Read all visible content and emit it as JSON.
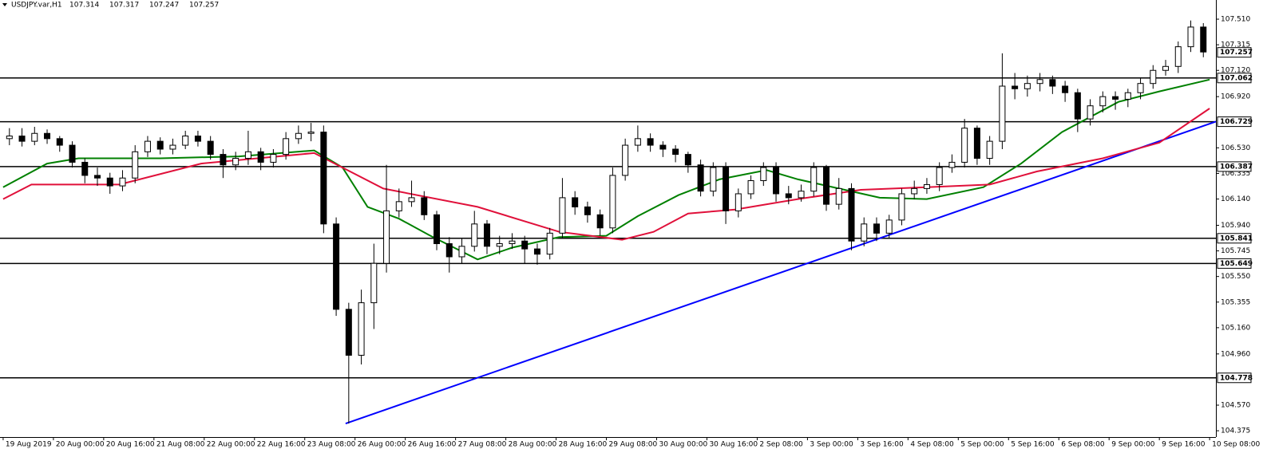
{
  "chart_data": {
    "type": "candlestick",
    "header": {
      "symbol": "USDJPY.var,H1",
      "open": 107.314,
      "high": 107.317,
      "low": 107.247,
      "close": 107.257
    },
    "candles": {
      "up_color": "#ffffff",
      "down_color": "#000000",
      "edge_color": "#000000",
      "x": [
        2,
        6,
        10,
        14,
        18,
        22,
        26,
        30,
        34,
        38,
        42,
        46,
        50,
        54,
        58,
        62,
        66,
        70,
        74,
        78,
        82,
        86,
        90,
        94,
        98,
        102,
        106,
        110,
        114,
        118,
        122,
        126,
        130,
        134,
        138,
        142,
        146,
        150,
        154,
        158,
        162,
        166,
        170,
        174,
        178,
        182,
        186,
        190,
        194,
        198,
        202,
        206,
        210,
        214,
        218,
        222,
        226,
        230,
        234,
        238,
        242,
        246,
        250,
        254,
        258,
        262,
        266,
        270,
        274,
        278,
        282,
        286,
        290,
        294,
        298,
        302,
        306,
        310,
        314,
        318,
        322,
        326,
        330,
        334,
        338,
        342,
        346,
        350,
        354,
        358,
        362,
        366,
        370,
        374,
        378,
        382
      ],
      "open": [
        106.6,
        106.62,
        106.58,
        106.64,
        106.6,
        106.55,
        106.42,
        106.32,
        106.3,
        106.24,
        106.3,
        106.5,
        106.58,
        106.52,
        106.55,
        106.62,
        106.58,
        106.48,
        106.4,
        106.45,
        106.5,
        106.42,
        106.48,
        106.6,
        106.64,
        106.65,
        105.95,
        105.3,
        104.95,
        105.35,
        105.65,
        106.05,
        106.12,
        106.15,
        106.02,
        105.8,
        105.7,
        105.78,
        105.95,
        105.78,
        105.8,
        105.82,
        105.76,
        105.72,
        105.88,
        106.15,
        106.08,
        106.02,
        105.92,
        106.32,
        106.55,
        106.6,
        106.55,
        106.52,
        106.48,
        106.4,
        106.2,
        106.38,
        106.05,
        106.18,
        106.28,
        106.38,
        106.18,
        106.15,
        106.2,
        106.38,
        106.1,
        106.22,
        105.82,
        105.95,
        105.88,
        105.98,
        106.18,
        106.22,
        106.25,
        106.38,
        106.42,
        106.68,
        106.45,
        106.58,
        107.0,
        106.98,
        107.02,
        107.05,
        107.0,
        106.95,
        106.75,
        106.85,
        106.92,
        106.9,
        106.95,
        107.02,
        107.12,
        107.15,
        107.3,
        107.45
      ],
      "high": [
        106.68,
        106.68,
        106.69,
        106.67,
        106.62,
        106.58,
        106.45,
        106.38,
        106.34,
        106.36,
        106.55,
        106.62,
        106.61,
        106.6,
        106.66,
        106.66,
        106.62,
        106.52,
        106.5,
        106.66,
        106.53,
        106.52,
        106.65,
        106.7,
        106.72,
        106.7,
        106.0,
        105.35,
        105.45,
        105.8,
        106.4,
        106.22,
        106.28,
        106.2,
        106.05,
        105.85,
        105.84,
        106.05,
        105.98,
        105.86,
        105.88,
        105.86,
        105.8,
        105.92,
        106.3,
        106.2,
        106.12,
        106.06,
        106.38,
        106.6,
        106.7,
        106.64,
        106.58,
        106.55,
        106.5,
        106.44,
        106.42,
        106.42,
        106.22,
        106.32,
        106.42,
        106.42,
        106.24,
        106.25,
        106.42,
        106.4,
        106.3,
        106.26,
        106.0,
        106.0,
        106.02,
        106.22,
        106.28,
        106.3,
        106.42,
        106.48,
        106.75,
        106.7,
        106.62,
        107.25,
        107.1,
        107.08,
        107.1,
        107.08,
        107.04,
        106.98,
        106.9,
        106.96,
        106.96,
        106.98,
        107.06,
        107.16,
        107.2,
        107.34,
        107.5,
        107.48
      ],
      "low": [
        106.55,
        106.54,
        106.55,
        106.56,
        106.5,
        106.38,
        106.26,
        106.24,
        106.18,
        106.2,
        106.26,
        106.46,
        106.48,
        106.48,
        106.52,
        106.54,
        106.44,
        106.3,
        106.36,
        106.4,
        106.36,
        106.38,
        106.44,
        106.56,
        106.58,
        105.88,
        105.25,
        104.43,
        104.88,
        105.15,
        105.58,
        106.0,
        106.08,
        105.98,
        105.75,
        105.58,
        105.65,
        105.74,
        105.72,
        105.72,
        105.76,
        105.65,
        105.64,
        105.68,
        105.84,
        106.02,
        105.96,
        105.86,
        105.88,
        106.28,
        106.5,
        106.5,
        106.46,
        106.42,
        106.34,
        106.16,
        106.16,
        105.95,
        106.0,
        106.14,
        106.24,
        106.12,
        106.1,
        106.12,
        106.16,
        106.05,
        106.06,
        105.75,
        105.78,
        105.82,
        105.84,
        105.94,
        106.14,
        106.18,
        106.2,
        106.34,
        106.38,
        106.4,
        106.4,
        106.52,
        106.9,
        106.92,
        106.96,
        106.94,
        106.88,
        106.65,
        106.7,
        106.8,
        106.82,
        106.84,
        106.9,
        106.98,
        107.08,
        107.1,
        107.26,
        107.22
      ],
      "close": [
        106.62,
        106.58,
        106.64,
        106.6,
        106.55,
        106.42,
        106.32,
        106.3,
        106.24,
        106.3,
        106.5,
        106.58,
        106.52,
        106.55,
        106.62,
        106.58,
        106.48,
        106.4,
        106.45,
        106.5,
        106.42,
        106.48,
        106.6,
        106.64,
        106.65,
        105.95,
        105.3,
        104.95,
        105.35,
        105.65,
        106.05,
        106.12,
        106.15,
        106.02,
        105.8,
        105.7,
        105.78,
        105.95,
        105.78,
        105.8,
        105.82,
        105.76,
        105.72,
        105.88,
        106.15,
        106.08,
        106.02,
        105.92,
        106.32,
        106.55,
        106.6,
        106.55,
        106.52,
        106.48,
        106.4,
        106.2,
        106.38,
        106.05,
        106.18,
        106.28,
        106.38,
        106.18,
        106.15,
        106.2,
        106.38,
        106.1,
        106.22,
        105.82,
        105.95,
        105.88,
        105.98,
        106.18,
        106.22,
        106.25,
        106.38,
        106.42,
        106.68,
        106.45,
        106.58,
        107.0,
        106.98,
        107.02,
        107.05,
        107.0,
        106.95,
        106.75,
        106.85,
        106.92,
        106.9,
        106.95,
        107.02,
        107.12,
        107.15,
        107.3,
        107.45,
        107.26
      ]
    },
    "indicators": [
      {
        "color": "#008000",
        "x": [
          0,
          14,
          24,
          50,
          75,
          99,
          108,
          116,
          126,
          136,
          151,
          162,
          177,
          192,
          202,
          215,
          228,
          243,
          253,
          266,
          279,
          294,
          312,
          324,
          337,
          355,
          368,
          384
        ],
        "values": [
          106.23,
          106.41,
          106.45,
          106.45,
          106.465,
          106.51,
          106.38,
          106.08,
          105.99,
          105.86,
          105.68,
          105.77,
          105.85,
          105.86,
          106.01,
          106.17,
          106.29,
          106.36,
          106.29,
          106.22,
          106.15,
          106.14,
          106.23,
          106.41,
          106.65,
          106.88,
          106.96,
          107.05
        ]
      },
      {
        "color": "#e0103a",
        "x": [
          0,
          9,
          37,
          63,
          99,
          121,
          151,
          177,
          197,
          207,
          218,
          233,
          253,
          273,
          294,
          314,
          329,
          350,
          368,
          384
        ],
        "values": [
          106.14,
          106.25,
          106.25,
          106.41,
          106.49,
          106.22,
          106.08,
          105.89,
          105.83,
          105.89,
          106.03,
          106.06,
          106.14,
          106.21,
          106.23,
          106.25,
          106.35,
          106.45,
          106.57,
          106.83
        ]
      }
    ],
    "trendline": {
      "color": "#0000ff",
      "x": [
        109,
        386
      ],
      "values": [
        104.43,
        106.73
      ]
    },
    "levels": [
      107.062,
      106.729,
      106.387,
      105.841,
      105.649,
      104.778
    ],
    "level_color": "#000000",
    "xlim": [
      -1,
      386
    ],
    "ylim": [
      104.327,
      107.656
    ],
    "yticks": [
      {
        "value": 107.51,
        "label": "107.510"
      },
      107.315,
      {
        "value": 107.12,
        "label": "107.120"
      },
      {
        "value": 106.92,
        "label": "106.920"
      },
      {
        "value": 106.53,
        "label": "106.530"
      },
      106.335,
      {
        "value": 106.14,
        "label": "106.140"
      },
      {
        "value": 105.94,
        "label": "105.940"
      },
      105.745,
      {
        "value": 105.55,
        "label": "105.550"
      },
      105.355,
      {
        "value": 105.16,
        "label": "105.160"
      },
      {
        "value": 104.96,
        "label": "104.960"
      },
      {
        "value": 104.57,
        "label": "104.570"
      },
      104.375
    ],
    "xticks": [
      {
        "value": 0,
        "label": "19 Aug 2019"
      },
      {
        "value": 16,
        "label": "20 Aug 00:00"
      },
      {
        "value": 32,
        "label": "20 Aug 16:00"
      },
      {
        "value": 48,
        "label": "21 Aug 08:00"
      },
      {
        "value": 64,
        "label": "22 Aug 00:00"
      },
      {
        "value": 80,
        "label": "22 Aug 16:00"
      },
      {
        "value": 96,
        "label": "23 Aug 08:00"
      },
      {
        "value": 112,
        "label": "26 Aug 00:00"
      },
      {
        "value": 128,
        "label": "26 Aug 16:00"
      },
      {
        "value": 144,
        "label": "27 Aug 08:00"
      },
      {
        "value": 160,
        "label": "28 Aug 00:00"
      },
      {
        "value": 176,
        "label": "28 Aug 16:00"
      },
      {
        "value": 192,
        "label": "29 Aug 08:00"
      },
      {
        "value": 208,
        "label": "30 Aug 00:00"
      },
      {
        "value": 224,
        "label": "30 Aug 16:00"
      },
      {
        "value": 240,
        "label": "2 Sep 08:00"
      },
      {
        "value": 256,
        "label": "3 Sep 00:00"
      },
      {
        "value": 272,
        "label": "3 Sep 16:00"
      },
      {
        "value": 288,
        "label": "4 Sep 08:00"
      },
      {
        "value": 304,
        "label": "5 Sep 00:00"
      },
      {
        "value": 320,
        "label": "5 Sep 16:00"
      },
      {
        "value": 336,
        "label": "6 Sep 08:00"
      },
      {
        "value": 352,
        "label": "9 Sep 00:00"
      },
      {
        "value": 368,
        "label": "9 Sep 16:00"
      },
      {
        "value": 384,
        "label": "10 Sep 08:00"
      }
    ]
  }
}
